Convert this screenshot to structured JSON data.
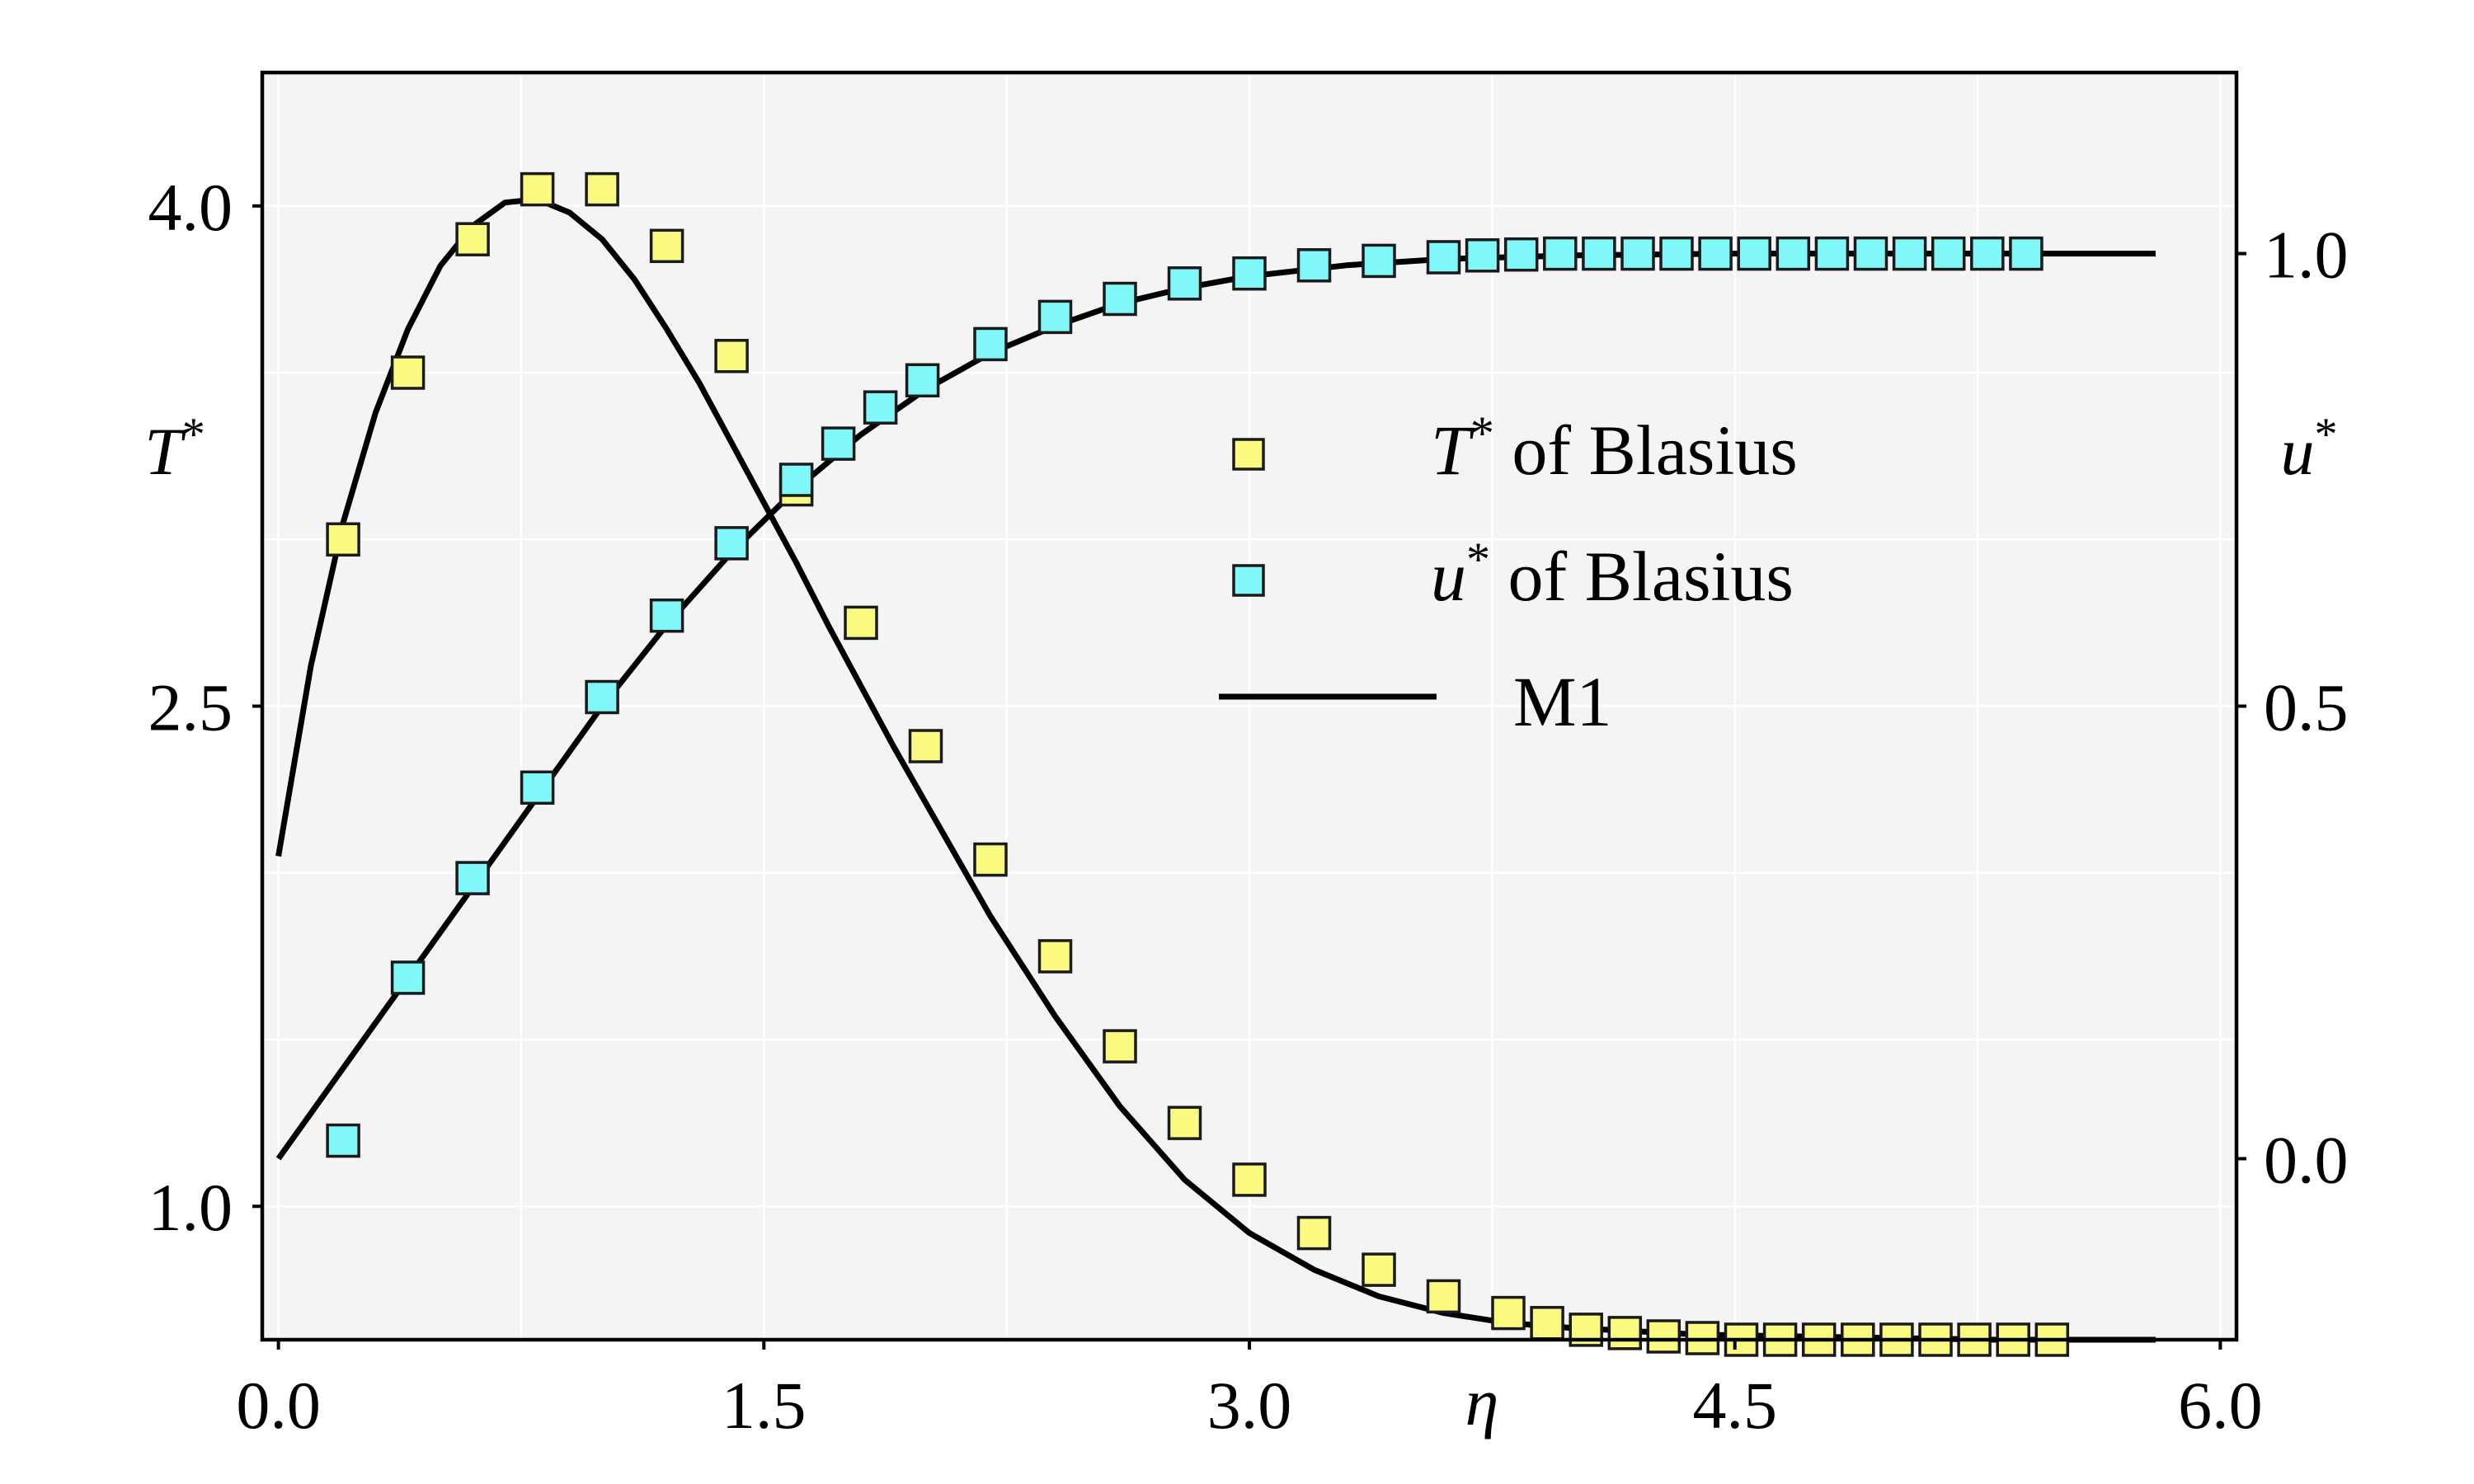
{
  "colors": {
    "background": "#f4f4f4",
    "grid": "#ffffff",
    "frame": "#000000",
    "t_marker": "#fafa80",
    "u_marker": "#80f8fa",
    "marker_edge": "#1a1a1a",
    "m1_line": "#000000"
  },
  "chart_data": {
    "type": "line",
    "title": "",
    "xlabel": "η",
    "ylabel_left": "T*",
    "ylabel_right": "u*",
    "xlim": [
      -0.05,
      6.05
    ],
    "ylim_left": [
      0.6,
      4.4
    ],
    "ylim_right": [
      -0.2,
      1.2
    ],
    "grid": true,
    "x_ticks": [
      0.0,
      1.5,
      3.0,
      4.5,
      6.0
    ],
    "x_tick_labels": [
      "0.0",
      "1.5",
      "3.0",
      "4.5",
      "6.0"
    ],
    "y_left_ticks": [
      1.0,
      2.5,
      4.0
    ],
    "y_left_tick_labels": [
      "1.0",
      "2.5",
      "4.0"
    ],
    "y_right_ticks": [
      0.0,
      0.5,
      1.0
    ],
    "y_right_tick_labels": [
      "0.0",
      "0.5",
      "1.0"
    ],
    "legend": {
      "position": "center-right",
      "entries": [
        {
          "symbol_name": "T",
          "symbol_sup": "*",
          "rest": " of Blasius"
        },
        {
          "symbol_name": "u",
          "symbol_sup": "*",
          "rest": " of Blasius"
        },
        {
          "label": "M1"
        }
      ]
    },
    "series": [
      {
        "name": "T* of Blasius",
        "kind": "scatter",
        "axis": "left",
        "x": [
          0.2,
          0.4,
          0.6,
          0.8,
          1.0,
          1.2,
          1.4,
          1.6,
          1.8,
          2.0,
          2.2,
          2.4,
          2.6,
          2.8,
          3.0,
          3.2,
          3.4,
          3.6,
          3.8,
          3.92,
          4.04,
          4.16,
          4.28,
          4.4,
          4.52,
          4.64,
          4.76,
          4.88,
          5.0,
          5.12,
          5.24,
          5.36,
          5.48
        ],
        "values": [
          3.0,
          3.5,
          3.9,
          4.05,
          4.05,
          3.88,
          3.55,
          3.15,
          2.75,
          2.38,
          2.04,
          1.75,
          1.48,
          1.25,
          1.08,
          0.92,
          0.81,
          0.73,
          0.68,
          0.65,
          0.63,
          0.62,
          0.61,
          0.605,
          0.6,
          0.6,
          0.6,
          0.6,
          0.6,
          0.6,
          0.6,
          0.6,
          0.6
        ]
      },
      {
        "name": "u* of Blasius",
        "kind": "scatter",
        "axis": "right",
        "x": [
          0.2,
          0.4,
          0.6,
          0.8,
          1.0,
          1.2,
          1.4,
          1.6,
          1.73,
          1.86,
          1.99,
          2.2,
          2.4,
          2.6,
          2.8,
          3.0,
          3.2,
          3.4,
          3.6,
          3.72,
          3.84,
          3.96,
          4.08,
          4.2,
          4.32,
          4.44,
          4.56,
          4.68,
          4.8,
          4.92,
          5.04,
          5.16,
          5.28,
          5.4
        ],
        "values": [
          0.02,
          0.2,
          0.31,
          0.41,
          0.51,
          0.6,
          0.68,
          0.75,
          0.79,
          0.83,
          0.86,
          0.9,
          0.93,
          0.95,
          0.967,
          0.978,
          0.987,
          0.992,
          0.996,
          0.998,
          0.999,
          1.0,
          1.0,
          1.0,
          1.0,
          1.0,
          1.0,
          1.0,
          1.0,
          1.0,
          1.0,
          1.0,
          1.0,
          1.0
        ]
      },
      {
        "name": "M1 (T*)",
        "kind": "line",
        "axis": "left",
        "x": [
          0.0,
          0.1,
          0.2,
          0.3,
          0.4,
          0.5,
          0.6,
          0.7,
          0.8,
          0.9,
          1.0,
          1.1,
          1.2,
          1.3,
          1.4,
          1.5,
          1.6,
          1.7,
          1.8,
          1.9,
          2.0,
          2.2,
          2.4,
          2.6,
          2.8,
          3.0,
          3.2,
          3.4,
          3.6,
          3.8,
          4.0,
          4.2,
          4.4,
          4.7,
          5.0,
          5.3,
          5.6,
          5.8
        ],
        "values": [
          2.05,
          2.62,
          3.05,
          3.38,
          3.63,
          3.82,
          3.94,
          4.01,
          4.02,
          3.98,
          3.9,
          3.78,
          3.63,
          3.47,
          3.29,
          3.11,
          2.93,
          2.74,
          2.56,
          2.38,
          2.21,
          1.87,
          1.57,
          1.3,
          1.08,
          0.92,
          0.81,
          0.73,
          0.68,
          0.65,
          0.635,
          0.625,
          0.615,
          0.61,
          0.605,
          0.6,
          0.6,
          0.6
        ]
      },
      {
        "name": "M1 (u*)",
        "kind": "line",
        "axis": "right",
        "x": [
          0.0,
          0.2,
          0.4,
          0.6,
          0.8,
          1.0,
          1.2,
          1.4,
          1.6,
          1.8,
          2.0,
          2.2,
          2.4,
          2.6,
          2.8,
          3.0,
          3.3,
          3.6,
          4.0,
          4.5,
          5.0,
          5.5,
          5.8
        ],
        "values": [
          0.0,
          0.1,
          0.2,
          0.3,
          0.4,
          0.5,
          0.59,
          0.67,
          0.74,
          0.8,
          0.85,
          0.89,
          0.92,
          0.945,
          0.962,
          0.975,
          0.987,
          0.994,
          0.998,
          1.0,
          1.0,
          1.0,
          1.0
        ]
      }
    ]
  }
}
